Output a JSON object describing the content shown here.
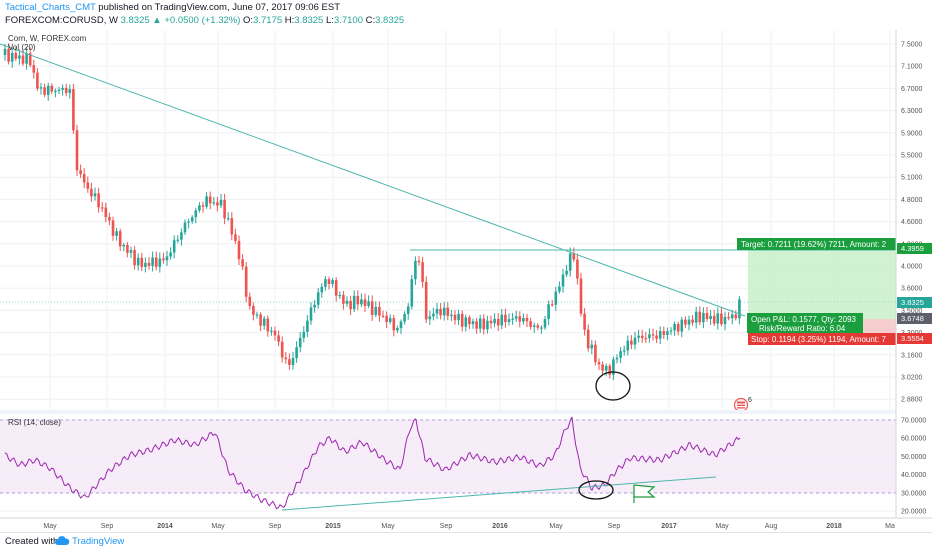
{
  "header": {
    "author": "Tactical_Charts_CMT",
    "published": "published on TradingView.com, June 07, 2017 09:06 EST",
    "symbol": "FOREXCOM:CORUSD, W",
    "price": "3.8325",
    "change_arrow": "▲",
    "change": "+0.0500 (+1.32%)",
    "ohlc": [
      {
        "k": "O:",
        "v": "3.7175"
      },
      {
        "k": "H:",
        "v": "3.8325"
      },
      {
        "k": "L:",
        "v": "3.7100"
      },
      {
        "k": "C:",
        "v": "3.8325"
      }
    ]
  },
  "chart": {
    "legend_title": "Corn, W, FOREX.com",
    "volume_label": "Vol (20)",
    "rsi_label": "RSI (14, close)",
    "main_axis": [
      "7.5000",
      "7.1000",
      "6.7000",
      "6.3000",
      "5.9000",
      "5.5000",
      "5.1000",
      "4.8000",
      "4.6000",
      "4.2000",
      "4.0000",
      "3.6000",
      "3.5000",
      "3.3000",
      "3.1600",
      "3.0200",
      "2.8800"
    ],
    "rsi_axis": [
      "70.0000",
      "60.0000",
      "50.0000",
      "40.0000",
      "30.0000",
      "20.0000"
    ],
    "price_badge": "3.8325",
    "target_badge": "4.3959",
    "entry_badge": "3.6748",
    "stop_badge": "3.5554",
    "time_axis": [
      "May",
      "Sep",
      "2014",
      "May",
      "Sep",
      "2015",
      "May",
      "Sep",
      "2016",
      "May",
      "Sep",
      "2017",
      "May",
      "Aug",
      "2018",
      "Ma"
    ],
    "target_label": "Target: 0.7211 (19.62%) 7211, Amount: 2",
    "pnl_label": "Open P&L: 0.1577, Qty: 2093",
    "rr_label": "Risk/Reward Ratio: 6.04",
    "stop_label": "Stop: 0.1194 (3.25%) 1194, Amount: 7",
    "colors": {
      "up": "#26a69a",
      "down": "#ef5350",
      "trend": "#4db6ac",
      "rsi_line": "#9c27b0",
      "rsi_fill": "#f3e5f5",
      "target_zone": "#c8f0c8",
      "stop_zone": "#f6c6c6",
      "target_box": "#1b9e3e",
      "stop_box": "#e53935"
    }
  },
  "footer": {
    "created_with": "Created with",
    "brand": "TradingView"
  }
}
